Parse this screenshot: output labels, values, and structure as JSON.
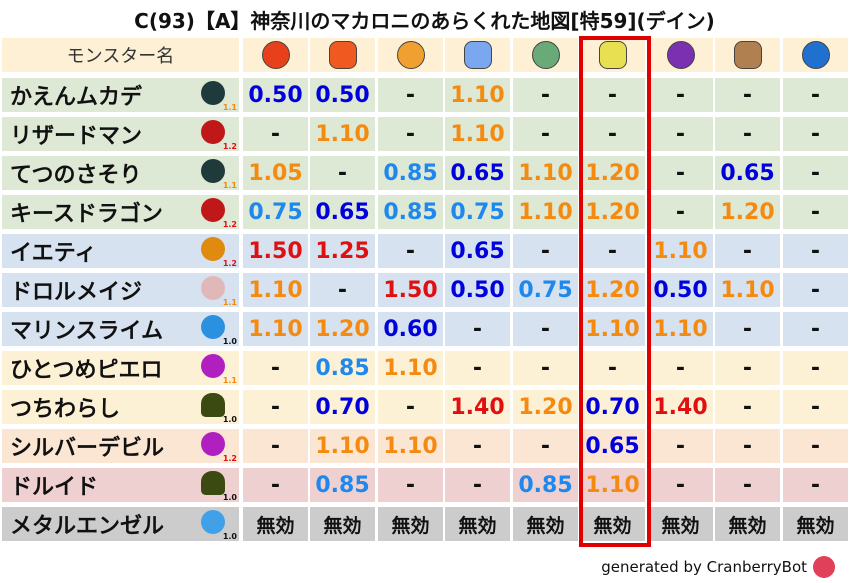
{
  "title": "C(93)【A】神奈川のマカロニのあらくれた地図[特59](デイン)",
  "header": {
    "name_label": "モンスター名",
    "elements": [
      {
        "icon": "fire-ball-icon",
        "color": "#e8401a"
      },
      {
        "icon": "flame-icon",
        "color": "#f05a20"
      },
      {
        "icon": "explosion-icon",
        "color": "#f0a030"
      },
      {
        "icon": "ice-icon",
        "color": "#7aa8f0"
      },
      {
        "icon": "tornado-icon",
        "color": "#6aaa78"
      },
      {
        "icon": "lightning-icon",
        "color": "#e8e050"
      },
      {
        "icon": "darkness-icon",
        "color": "#7a30b0"
      },
      {
        "icon": "earth-icon",
        "color": "#b08050"
      },
      {
        "icon": "water-icon",
        "color": "#2070d0"
      }
    ]
  },
  "highlighted_column": 6,
  "colors": {
    "strong_resist": "#0000dd",
    "resist": "#1e88ee",
    "weak": "#f58a10",
    "very_weak": "#e01010",
    "highlight": "#e00000"
  },
  "rows": [
    {
      "name": "かえんムカデ",
      "icon": "bug-icon",
      "level": "1.1",
      "bg": "#dde8d5",
      "values": [
        "0.50",
        "0.50",
        "-",
        "1.10",
        "-",
        "-",
        "-",
        "-",
        "-"
      ]
    },
    {
      "name": "リザードマン",
      "icon": "dragon-icon",
      "level": "1.2",
      "bg": "#dde8d5",
      "values": [
        "-",
        "1.10",
        "-",
        "1.10",
        "-",
        "-",
        "-",
        "-",
        "-"
      ]
    },
    {
      "name": "てつのさそり",
      "icon": "bug-icon",
      "level": "1.1",
      "bg": "#dde8d5",
      "values": [
        "1.05",
        "-",
        "0.85",
        "0.65",
        "1.10",
        "1.20",
        "-",
        "0.65",
        "-"
      ]
    },
    {
      "name": "キースドラゴン",
      "icon": "dragon-icon",
      "level": "1.2",
      "bg": "#dde8d5",
      "values": [
        "0.75",
        "0.65",
        "0.85",
        "0.75",
        "1.10",
        "1.20",
        "-",
        "1.20",
        "-"
      ]
    },
    {
      "name": "イエティ",
      "icon": "paw-icon",
      "level": "1.2",
      "bg": "#d6e2ef",
      "values": [
        "1.50",
        "1.25",
        "-",
        "0.65",
        "-",
        "-",
        "1.10",
        "-",
        "-"
      ]
    },
    {
      "name": "ドロルメイジ",
      "icon": "skull-icon",
      "level": "1.1",
      "bg": "#d6e2ef",
      "values": [
        "1.10",
        "-",
        "1.50",
        "0.50",
        "0.75",
        "1.20",
        "0.50",
        "1.10",
        "-"
      ]
    },
    {
      "name": "マリンスライム",
      "icon": "drop-icon",
      "level": "1.0",
      "bg": "#d6e2ef",
      "values": [
        "1.10",
        "1.20",
        "0.60",
        "-",
        "-",
        "1.10",
        "1.10",
        "-",
        "-"
      ]
    },
    {
      "name": "ひとつめピエロ",
      "icon": "devil-icon",
      "level": "1.1",
      "bg": "#fdf1d5",
      "values": [
        "-",
        "0.85",
        "1.10",
        "-",
        "-",
        "-",
        "-",
        "-",
        "-"
      ]
    },
    {
      "name": "つちわらし",
      "icon": "ghost-icon",
      "level": "1.0",
      "bg": "#fdf1d5",
      "values": [
        "-",
        "0.70",
        "-",
        "1.40",
        "1.20",
        "0.70",
        "1.40",
        "-",
        "-"
      ]
    },
    {
      "name": "シルバーデビル",
      "icon": "devil-icon",
      "level": "1.2",
      "bg": "#fbe5d3",
      "values": [
        "-",
        "1.10",
        "1.10",
        "-",
        "-",
        "0.65",
        "-",
        "-",
        "-"
      ]
    },
    {
      "name": "ドルイド",
      "icon": "ghost-icon",
      "level": "1.0",
      "bg": "#efd0d0",
      "values": [
        "-",
        "0.85",
        "-",
        "-",
        "0.85",
        "1.10",
        "-",
        "-",
        "-"
      ]
    },
    {
      "name": "メタルエンゼル",
      "icon": "slime-icon",
      "level": "1.0",
      "bg": "#cccccc",
      "values": [
        "無効",
        "無効",
        "無効",
        "無効",
        "無効",
        "無効",
        "無効",
        "無効",
        "無効"
      ]
    }
  ],
  "footer": {
    "text": "generated by CranberryBot",
    "icon": "cranberry-bot-icon"
  }
}
